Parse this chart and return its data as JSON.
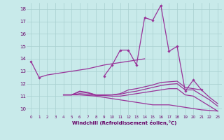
{
  "x": [
    0,
    1,
    2,
    3,
    4,
    5,
    6,
    7,
    8,
    9,
    10,
    11,
    12,
    13,
    14,
    15,
    16,
    17,
    18,
    19,
    20,
    21,
    22,
    23
  ],
  "line_peak": [
    null,
    null,
    null,
    null,
    null,
    null,
    null,
    null,
    null,
    12.6,
    13.5,
    14.7,
    14.7,
    13.5,
    17.3,
    17.1,
    18.3,
    14.6,
    15.0,
    11.4,
    12.3,
    11.5,
    null,
    null
  ],
  "line_upper": [
    13.8,
    12.5,
    null,
    null,
    null,
    null,
    null,
    null,
    null,
    null,
    null,
    null,
    null,
    null,
    null,
    null,
    null,
    null,
    null,
    null,
    null,
    null,
    null,
    null
  ],
  "line_mid": [
    null,
    12.5,
    12.7,
    12.8,
    12.9,
    13.0,
    13.1,
    13.2,
    13.35,
    13.5,
    13.6,
    13.7,
    13.8,
    13.9,
    14.0,
    null,
    null,
    null,
    null,
    null,
    null,
    null,
    null,
    null
  ],
  "line_a": [
    null,
    null,
    null,
    null,
    11.1,
    11.1,
    11.4,
    11.3,
    11.1,
    11.1,
    11.1,
    11.2,
    11.5,
    11.6,
    11.75,
    11.9,
    12.1,
    12.15,
    12.2,
    11.7,
    11.6,
    11.5,
    10.9,
    10.4
  ],
  "line_b": [
    null,
    null,
    null,
    null,
    11.1,
    11.1,
    11.35,
    11.25,
    11.1,
    11.1,
    11.1,
    11.15,
    11.3,
    11.4,
    11.55,
    11.7,
    11.85,
    11.95,
    12.0,
    11.5,
    11.5,
    11.1,
    10.7,
    10.2
  ],
  "line_c": [
    null,
    null,
    null,
    null,
    11.1,
    11.1,
    11.2,
    11.15,
    11.05,
    11.05,
    11.0,
    11.0,
    11.1,
    11.2,
    11.3,
    11.4,
    11.5,
    11.6,
    11.6,
    11.1,
    11.0,
    10.6,
    10.2,
    9.8
  ],
  "line_d": [
    null,
    null,
    null,
    null,
    11.1,
    11.1,
    11.1,
    11.05,
    11.0,
    10.9,
    10.8,
    10.7,
    10.6,
    10.5,
    10.4,
    10.3,
    10.3,
    10.3,
    10.2,
    10.1,
    10.0,
    9.9,
    9.85,
    9.8
  ],
  "background_color": "#c8eaea",
  "grid_color": "#a8d0d0",
  "line_color": "#993399",
  "xlabel": "Windchill (Refroidissement éolien,°C)",
  "xlim": [
    -0.5,
    23.5
  ],
  "ylim": [
    9.5,
    18.5
  ],
  "xticks": [
    0,
    1,
    2,
    3,
    4,
    5,
    6,
    7,
    8,
    9,
    10,
    11,
    12,
    13,
    14,
    15,
    16,
    17,
    18,
    19,
    20,
    21,
    22,
    23
  ],
  "yticks": [
    10,
    11,
    12,
    13,
    14,
    15,
    16,
    17,
    18
  ],
  "figsize": [
    3.2,
    2.0
  ],
  "dpi": 100
}
